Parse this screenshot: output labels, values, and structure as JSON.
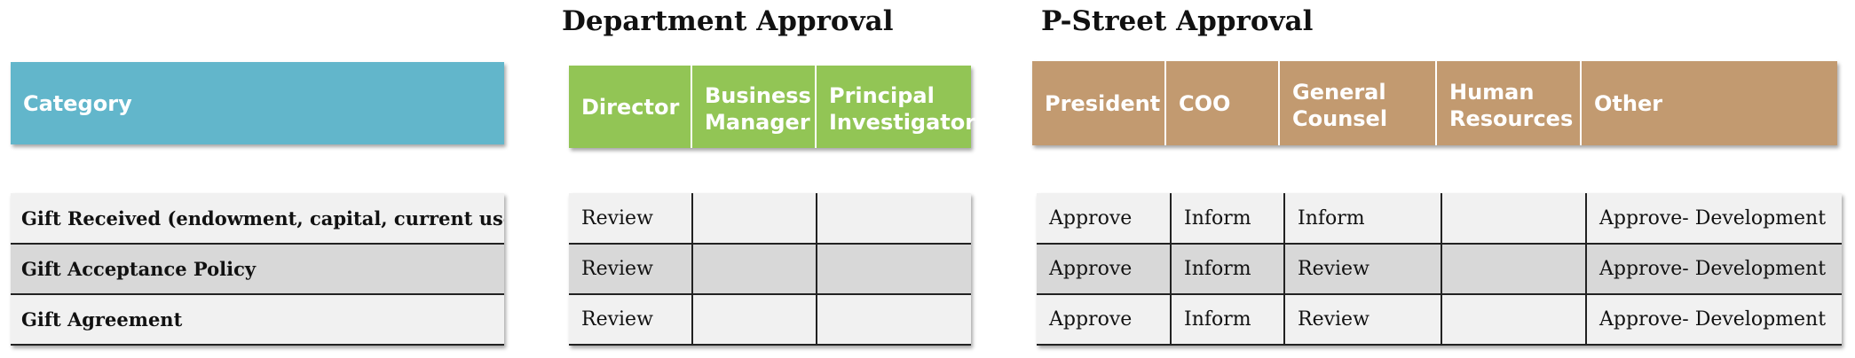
{
  "sections": {
    "department_title": "Department Approval",
    "pstreet_title": "P-Street Approval"
  },
  "headers": {
    "category": "Category",
    "department": [
      "Director",
      "Business Manager",
      "Principal Investigator"
    ],
    "pstreet": [
      "President",
      "COO",
      "General Counsel",
      "Human Resources",
      "Other"
    ]
  },
  "rows": [
    {
      "category": "Gift Received (endowment, capital, current use)",
      "department": [
        "Review",
        "",
        ""
      ],
      "pstreet": [
        "Approve",
        "Inform",
        "Inform",
        "",
        "Approve- Development"
      ]
    },
    {
      "category": "Gift Acceptance Policy",
      "department": [
        "Review",
        "",
        ""
      ],
      "pstreet": [
        "Approve",
        "Inform",
        "Review",
        "",
        "Approve- Development"
      ]
    },
    {
      "category": "Gift Agreement",
      "department": [
        "Review",
        "",
        ""
      ],
      "pstreet": [
        "Approve",
        "Inform",
        "Review",
        "",
        "Approve- Development"
      ]
    }
  ],
  "colors": {
    "category_header": "#62b6cb",
    "department_header": "#92c555",
    "pstreet_header": "#c29a70",
    "row_light": "#f1f1f1",
    "row_dark": "#d8d8d8"
  }
}
